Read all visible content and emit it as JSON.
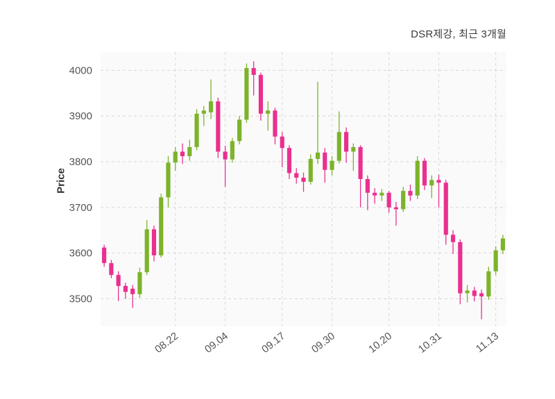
{
  "title": "DSR제강, 최근 3개월",
  "ylabel": "Price",
  "colors": {
    "up": "#7cb32a",
    "down": "#e9308f",
    "grid": "#d8d8d8",
    "plot_bg": "#fafafa",
    "title_text": "#3a3a3a",
    "tick_text": "#555555"
  },
  "chart_data": {
    "type": "candlestick",
    "title": "DSR제강, 최근 3개월",
    "ylabel": "Price",
    "ylim": [
      3440,
      4040
    ],
    "yticks": [
      3500,
      3600,
      3700,
      3800,
      3900,
      4000
    ],
    "grid": "dashed",
    "legend": "none",
    "xticks": [
      {
        "index": 10,
        "label": "08.22"
      },
      {
        "index": 17,
        "label": "09.04"
      },
      {
        "index": 25,
        "label": "09.17"
      },
      {
        "index": 32,
        "label": "09.30"
      },
      {
        "index": 40,
        "label": "10.20"
      },
      {
        "index": 47,
        "label": "10.31"
      },
      {
        "index": 55,
        "label": "11.13"
      }
    ],
    "candles_format": [
      "open",
      "high",
      "low",
      "close"
    ],
    "candles": [
      [
        3612,
        3618,
        3570,
        3578
      ],
      [
        3578,
        3585,
        3545,
        3552
      ],
      [
        3552,
        3560,
        3495,
        3528
      ],
      [
        3528,
        3535,
        3500,
        3515
      ],
      [
        3522,
        3530,
        3480,
        3510
      ],
      [
        3510,
        3568,
        3502,
        3558
      ],
      [
        3558,
        3672,
        3552,
        3652
      ],
      [
        3652,
        3660,
        3582,
        3595
      ],
      [
        3595,
        3730,
        3590,
        3722
      ],
      [
        3722,
        3812,
        3700,
        3798
      ],
      [
        3798,
        3832,
        3780,
        3822
      ],
      [
        3822,
        3840,
        3795,
        3812
      ],
      [
        3812,
        3848,
        3802,
        3832
      ],
      [
        3832,
        3915,
        3825,
        3905
      ],
      [
        3905,
        3922,
        3878,
        3912
      ],
      [
        3908,
        3980,
        3893,
        3932
      ],
      [
        3932,
        3940,
        3808,
        3822
      ],
      [
        3822,
        3835,
        3745,
        3805
      ],
      [
        3805,
        3852,
        3798,
        3845
      ],
      [
        3845,
        3900,
        3838,
        3892
      ],
      [
        3892,
        4015,
        3885,
        4005
      ],
      [
        4005,
        4020,
        3945,
        3990
      ],
      [
        3990,
        3995,
        3890,
        3905
      ],
      [
        3905,
        3932,
        3868,
        3912
      ],
      [
        3912,
        3918,
        3838,
        3855
      ],
      [
        3855,
        3865,
        3788,
        3830
      ],
      [
        3830,
        3836,
        3762,
        3775
      ],
      [
        3775,
        3786,
        3752,
        3765
      ],
      [
        3765,
        3776,
        3734,
        3756
      ],
      [
        3756,
        3816,
        3750,
        3806
      ],
      [
        3806,
        3975,
        3795,
        3820
      ],
      [
        3820,
        3830,
        3754,
        3782
      ],
      [
        3782,
        3812,
        3770,
        3802
      ],
      [
        3802,
        3910,
        3796,
        3865
      ],
      [
        3865,
        3875,
        3798,
        3822
      ],
      [
        3822,
        3840,
        3780,
        3832
      ],
      [
        3832,
        3836,
        3700,
        3762
      ],
      [
        3762,
        3770,
        3694,
        3732
      ],
      [
        3732,
        3742,
        3708,
        3726
      ],
      [
        3726,
        3740,
        3714,
        3732
      ],
      [
        3732,
        3736,
        3688,
        3700
      ],
      [
        3700,
        3712,
        3660,
        3696
      ],
      [
        3696,
        3745,
        3690,
        3736
      ],
      [
        3736,
        3750,
        3714,
        3726
      ],
      [
        3726,
        3812,
        3718,
        3802
      ],
      [
        3802,
        3808,
        3738,
        3748
      ],
      [
        3748,
        3770,
        3720,
        3760
      ],
      [
        3760,
        3772,
        3700,
        3754
      ],
      [
        3754,
        3760,
        3618,
        3640
      ],
      [
        3640,
        3650,
        3598,
        3624
      ],
      [
        3624,
        3630,
        3488,
        3512
      ],
      [
        3512,
        3530,
        3492,
        3518
      ],
      [
        3518,
        3526,
        3494,
        3506
      ],
      [
        3512,
        3520,
        3455,
        3505
      ],
      [
        3505,
        3570,
        3498,
        3560
      ],
      [
        3560,
        3615,
        3552,
        3606
      ],
      [
        3606,
        3640,
        3598,
        3632
      ]
    ]
  }
}
